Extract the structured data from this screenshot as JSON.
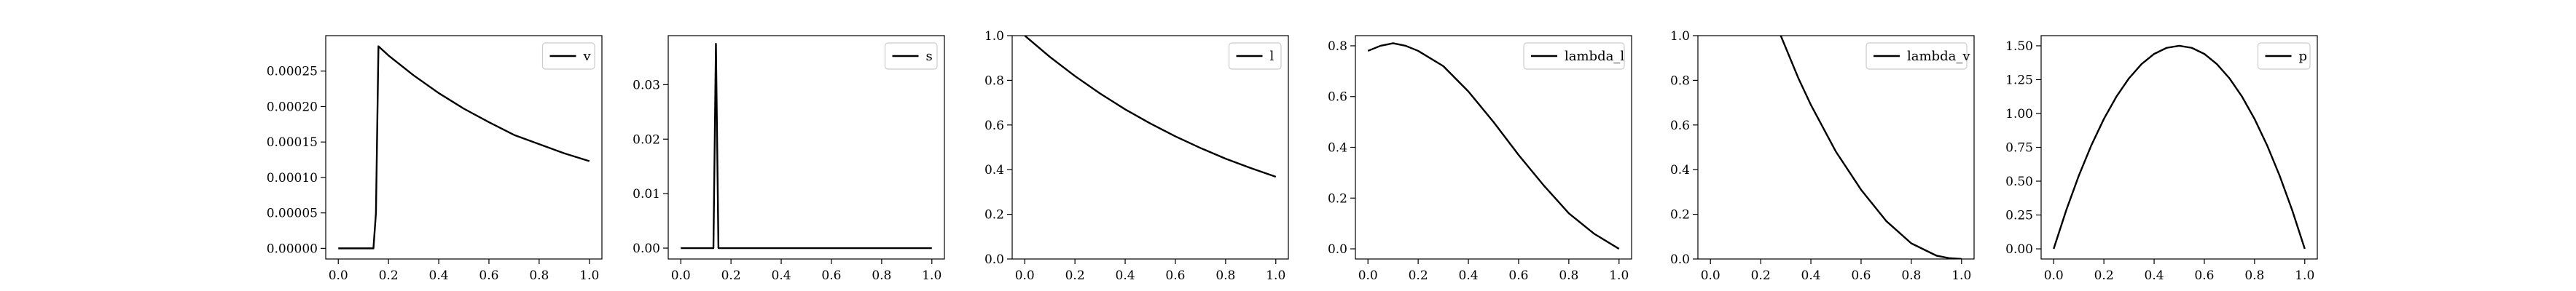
{
  "chart_data": [
    {
      "type": "line",
      "series": [
        {
          "name": "v",
          "x": [
            0.0,
            0.14,
            0.15,
            0.16,
            0.2,
            0.3,
            0.4,
            0.5,
            0.6,
            0.7,
            0.8,
            0.9,
            1.0
          ],
          "y": [
            0.0,
            0.0,
            5e-05,
            0.000285,
            0.000272,
            0.000244,
            0.000219,
            0.000197,
            0.000178,
            0.00016,
            0.000147,
            0.000134,
            0.000123
          ]
        }
      ],
      "xlim": [
        -0.05,
        1.05
      ],
      "ylim": [
        -1.5e-05,
        0.0003
      ],
      "xticks": [
        0.0,
        0.2,
        0.4,
        0.6,
        0.8,
        1.0
      ],
      "xtick_labels": [
        "0.0",
        "0.2",
        "0.4",
        "0.6",
        "0.8",
        "1.0"
      ],
      "yticks": [
        0.0,
        5e-05,
        0.0001,
        0.00015,
        0.0002,
        0.00025
      ],
      "ytick_labels": [
        "0.00000",
        "0.00005",
        "0.00010",
        "0.00015",
        "0.00020",
        "0.00025"
      ],
      "legend": "upper right"
    },
    {
      "type": "line",
      "series": [
        {
          "name": "s",
          "x": [
            0.0,
            0.13,
            0.14,
            0.15,
            1.0
          ],
          "y": [
            0.0,
            0.0,
            0.0375,
            0.0,
            0.0
          ]
        }
      ],
      "xlim": [
        -0.05,
        1.05
      ],
      "ylim": [
        -0.002,
        0.039
      ],
      "xticks": [
        0.0,
        0.2,
        0.4,
        0.6,
        0.8,
        1.0
      ],
      "xtick_labels": [
        "0.0",
        "0.2",
        "0.4",
        "0.6",
        "0.8",
        "1.0"
      ],
      "yticks": [
        0.0,
        0.01,
        0.02,
        0.03
      ],
      "ytick_labels": [
        "0.00",
        "0.01",
        "0.02",
        "0.03"
      ],
      "legend": "upper right"
    },
    {
      "type": "line",
      "series": [
        {
          "name": "l",
          "x": [
            0.0,
            0.1,
            0.2,
            0.3,
            0.4,
            0.5,
            0.6,
            0.7,
            0.8,
            0.9,
            1.0
          ],
          "y": [
            1.0,
            0.905,
            0.819,
            0.741,
            0.67,
            0.607,
            0.549,
            0.497,
            0.449,
            0.407,
            0.368
          ]
        }
      ],
      "xlim": [
        -0.05,
        1.05
      ],
      "ylim": [
        0.0,
        1.0
      ],
      "xticks": [
        0.0,
        0.2,
        0.4,
        0.6,
        0.8,
        1.0
      ],
      "xtick_labels": [
        "0.0",
        "0.2",
        "0.4",
        "0.6",
        "0.8",
        "1.0"
      ],
      "yticks": [
        0.0,
        0.2,
        0.4,
        0.6,
        0.8,
        1.0
      ],
      "ytick_labels": [
        "0.0",
        "0.2",
        "0.4",
        "0.6",
        "0.8",
        "1.0"
      ],
      "legend": "upper right"
    },
    {
      "type": "line",
      "series": [
        {
          "name": "lambda_l",
          "x": [
            0.0,
            0.05,
            0.1,
            0.15,
            0.2,
            0.3,
            0.4,
            0.5,
            0.6,
            0.7,
            0.8,
            0.9,
            1.0
          ],
          "y": [
            0.78,
            0.8,
            0.81,
            0.8,
            0.78,
            0.72,
            0.62,
            0.5,
            0.37,
            0.25,
            0.14,
            0.06,
            0.0
          ]
        }
      ],
      "xlim": [
        -0.05,
        1.05
      ],
      "ylim": [
        -0.04,
        0.84
      ],
      "xticks": [
        0.0,
        0.2,
        0.4,
        0.6,
        0.8,
        1.0
      ],
      "xtick_labels": [
        "0.0",
        "0.2",
        "0.4",
        "0.6",
        "0.8",
        "1.0"
      ],
      "yticks": [
        0.0,
        0.2,
        0.4,
        0.6,
        0.8
      ],
      "ytick_labels": [
        "0.0",
        "0.2",
        "0.4",
        "0.6",
        "0.8"
      ],
      "legend": "upper right"
    },
    {
      "type": "line",
      "series": [
        {
          "name": "lambda_v",
          "x": [
            0.28,
            0.35,
            0.4,
            0.5,
            0.6,
            0.7,
            0.8,
            0.9,
            0.95,
            1.0
          ],
          "y": [
            1.0,
            0.81,
            0.69,
            0.48,
            0.31,
            0.17,
            0.07,
            0.015,
            0.004,
            0.0
          ]
        }
      ],
      "xlim": [
        -0.05,
        1.05
      ],
      "ylim": [
        0.0,
        1.0
      ],
      "xticks": [
        0.0,
        0.2,
        0.4,
        0.6,
        0.8,
        1.0
      ],
      "xtick_labels": [
        "0.0",
        "0.2",
        "0.4",
        "0.6",
        "0.8",
        "1.0"
      ],
      "yticks": [
        0.0,
        0.2,
        0.4,
        0.6,
        0.8,
        1.0
      ],
      "ytick_labels": [
        "0.0",
        "0.2",
        "0.4",
        "0.6",
        "0.8",
        "1.0"
      ],
      "legend": "upper right"
    },
    {
      "type": "line",
      "series": [
        {
          "name": "p",
          "x": [
            0.0,
            0.05,
            0.1,
            0.15,
            0.2,
            0.25,
            0.3,
            0.35,
            0.4,
            0.45,
            0.5,
            0.55,
            0.6,
            0.65,
            0.7,
            0.75,
            0.8,
            0.85,
            0.9,
            0.95,
            1.0
          ],
          "y": [
            0.0,
            0.285,
            0.54,
            0.765,
            0.96,
            1.125,
            1.26,
            1.365,
            1.44,
            1.485,
            1.5,
            1.485,
            1.44,
            1.365,
            1.26,
            1.125,
            0.96,
            0.765,
            0.54,
            0.285,
            0.0
          ]
        }
      ],
      "xlim": [
        -0.05,
        1.05
      ],
      "ylim": [
        -0.075,
        1.575
      ],
      "xticks": [
        0.0,
        0.2,
        0.4,
        0.6,
        0.8,
        1.0
      ],
      "xtick_labels": [
        "0.0",
        "0.2",
        "0.4",
        "0.6",
        "0.8",
        "1.0"
      ],
      "yticks": [
        0.0,
        0.25,
        0.5,
        0.75,
        1.0,
        1.25,
        1.5
      ],
      "ytick_labels": [
        "0.00",
        "0.25",
        "0.50",
        "0.75",
        "1.00",
        "1.25",
        "1.50"
      ],
      "legend": "upper right"
    }
  ]
}
